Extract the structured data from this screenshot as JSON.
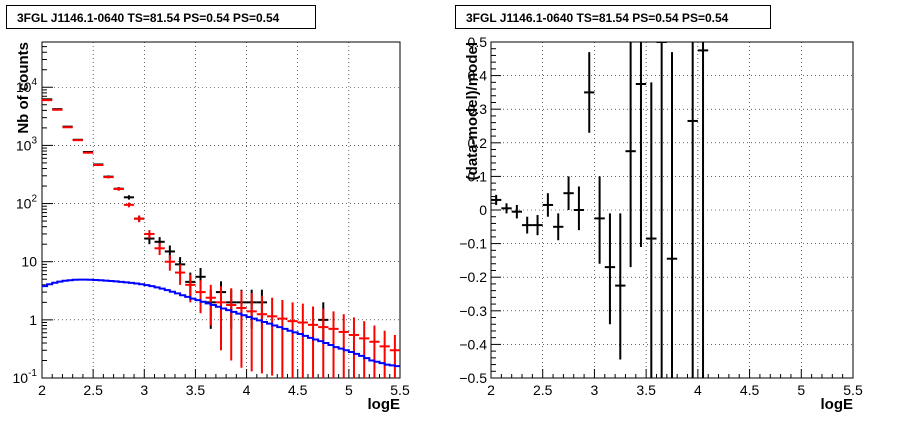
{
  "chart_data": [
    {
      "type": "scatter",
      "title": "3FGL J1146.1-0640 TS=81.54 PS=0.54 PS=0.54",
      "xlabel": "logE",
      "ylabel": "Nb of counts",
      "xlim": [
        2,
        5.5
      ],
      "ylim": [
        0.1,
        60000
      ],
      "yscale": "log",
      "grid": true,
      "x_ticks": [
        "2",
        "2.5",
        "3",
        "3.5",
        "4",
        "4.5",
        "5",
        "5.5"
      ],
      "y_ticks": [
        "10^{-1}",
        "1",
        "10",
        "10^{2}",
        "10^{3}",
        "10^{4}"
      ],
      "series": [
        {
          "color": "#000000",
          "marker": "errorbar",
          "points": [
            {
              "x": 2.05,
              "y": 6200,
              "lo": 6100,
              "hi": 6300
            },
            {
              "x": 2.15,
              "y": 4200,
              "lo": 4130,
              "hi": 4270
            },
            {
              "x": 2.25,
              "y": 2100,
              "lo": 2050,
              "hi": 2150
            },
            {
              "x": 2.35,
              "y": 1250,
              "lo": 1210,
              "hi": 1290
            },
            {
              "x": 2.45,
              "y": 770,
              "lo": 740,
              "hi": 800
            },
            {
              "x": 2.55,
              "y": 470,
              "lo": 450,
              "hi": 490
            },
            {
              "x": 2.65,
              "y": 290,
              "lo": 275,
              "hi": 305
            },
            {
              "x": 2.75,
              "y": 180,
              "lo": 168,
              "hi": 192
            },
            {
              "x": 2.85,
              "y": 128,
              "lo": 117,
              "hi": 139
            },
            {
              "x": 2.95,
              "y": 55,
              "lo": 48,
              "hi": 62
            },
            {
              "x": 3.05,
              "y": 25,
              "lo": 20,
              "hi": 30
            },
            {
              "x": 3.15,
              "y": 22,
              "lo": 17.5,
              "hi": 26.5
            },
            {
              "x": 3.25,
              "y": 15,
              "lo": 11,
              "hi": 19
            },
            {
              "x": 3.35,
              "y": 9,
              "lo": 6,
              "hi": 12
            },
            {
              "x": 3.45,
              "y": 4.5,
              "lo": 2.5,
              "hi": 6.5
            },
            {
              "x": 3.55,
              "y": 5.5,
              "lo": 3.2,
              "hi": 7.8
            },
            {
              "x": 3.65,
              "y": 2,
              "lo": 0.7,
              "hi": 3.3
            },
            {
              "x": 3.75,
              "y": 3,
              "lo": 1.4,
              "hi": 4.6
            },
            {
              "x": 3.85,
              "y": 2,
              "lo": 0.7,
              "hi": 3.3
            },
            {
              "x": 3.95,
              "y": 2,
              "lo": 0.7,
              "hi": 3.3
            },
            {
              "x": 4.05,
              "y": 2,
              "lo": 0.7,
              "hi": 3.3
            },
            {
              "x": 4.15,
              "y": 2,
              "lo": 0.7,
              "hi": 3.3
            },
            {
              "x": 4.75,
              "y": 1,
              "lo": 0.45,
              "hi": 2.0
            }
          ]
        },
        {
          "color": "#ff0000",
          "marker": "errorbar",
          "points": [
            {
              "x": 2.05,
              "y": 6000,
              "lo": 5900,
              "hi": 6100
            },
            {
              "x": 2.15,
              "y": 4100,
              "lo": 4030,
              "hi": 4170
            },
            {
              "x": 2.25,
              "y": 2050,
              "lo": 2000,
              "hi": 2100
            },
            {
              "x": 2.35,
              "y": 1230,
              "lo": 1190,
              "hi": 1270
            },
            {
              "x": 2.45,
              "y": 750,
              "lo": 720,
              "hi": 780
            },
            {
              "x": 2.55,
              "y": 460,
              "lo": 440,
              "hi": 480
            },
            {
              "x": 2.65,
              "y": 285,
              "lo": 270,
              "hi": 300
            },
            {
              "x": 2.75,
              "y": 178,
              "lo": 166,
              "hi": 190
            },
            {
              "x": 2.85,
              "y": 95,
              "lo": 86,
              "hi": 104
            },
            {
              "x": 2.95,
              "y": 55,
              "lo": 48,
              "hi": 62
            },
            {
              "x": 3.05,
              "y": 30,
              "lo": 25,
              "hi": 35
            },
            {
              "x": 3.15,
              "y": 17,
              "lo": 13,
              "hi": 21
            },
            {
              "x": 3.25,
              "y": 10,
              "lo": 7,
              "hi": 13
            },
            {
              "x": 3.35,
              "y": 6.5,
              "lo": 4,
              "hi": 9
            },
            {
              "x": 3.45,
              "y": 4,
              "lo": 2,
              "hi": 6
            },
            {
              "x": 3.55,
              "y": 3,
              "lo": 1.3,
              "hi": 4.8
            },
            {
              "x": 3.65,
              "y": 2.4,
              "lo": 0.8,
              "hi": 4.0
            },
            {
              "x": 3.75,
              "y": 2,
              "lo": 0.3,
              "hi": 3.8
            },
            {
              "x": 3.85,
              "y": 1.8,
              "lo": 0.2,
              "hi": 3.5
            },
            {
              "x": 3.95,
              "y": 1.6,
              "lo": 0.15,
              "hi": 3.2
            },
            {
              "x": 4.05,
              "y": 1.4,
              "lo": 0.13,
              "hi": 2.9
            },
            {
              "x": 4.15,
              "y": 1.25,
              "lo": 0.12,
              "hi": 2.6
            },
            {
              "x": 4.25,
              "y": 1.15,
              "lo": 0.11,
              "hi": 2.4
            },
            {
              "x": 4.35,
              "y": 1.05,
              "lo": 0.1,
              "hi": 2.2
            },
            {
              "x": 4.45,
              "y": 0.95,
              "lo": 0.1,
              "hi": 2.0
            },
            {
              "x": 4.55,
              "y": 0.9,
              "lo": 0.1,
              "hi": 1.9
            },
            {
              "x": 4.65,
              "y": 0.82,
              "lo": 0.1,
              "hi": 1.7
            },
            {
              "x": 4.75,
              "y": 0.75,
              "lo": 0.1,
              "hi": 1.55
            },
            {
              "x": 4.85,
              "y": 0.7,
              "lo": 0.1,
              "hi": 1.4
            },
            {
              "x": 4.95,
              "y": 0.62,
              "lo": 0.1,
              "hi": 1.25
            },
            {
              "x": 5.05,
              "y": 0.55,
              "lo": 0.1,
              "hi": 1.1
            },
            {
              "x": 5.15,
              "y": 0.48,
              "lo": 0.1,
              "hi": 0.95
            },
            {
              "x": 5.25,
              "y": 0.42,
              "lo": 0.1,
              "hi": 0.8
            },
            {
              "x": 5.35,
              "y": 0.35,
              "lo": 0.1,
              "hi": 0.65
            },
            {
              "x": 5.45,
              "y": 0.3,
              "lo": 0.1,
              "hi": 0.55
            }
          ]
        },
        {
          "color": "#0000ff",
          "type": "step",
          "bin_edges": [
            2.0,
            2.05,
            2.1,
            2.15,
            2.2,
            2.25,
            2.3,
            2.35,
            2.4,
            2.45,
            2.5,
            2.55,
            2.6,
            2.65,
            2.7,
            2.75,
            2.8,
            2.85,
            2.9,
            2.95,
            3.0,
            3.05,
            3.1,
            3.15,
            3.2,
            3.25,
            3.3,
            3.35,
            3.4,
            3.45,
            3.5,
            3.55,
            3.6,
            3.65,
            3.7,
            3.75,
            3.8,
            3.85,
            3.9,
            3.95,
            4.0,
            4.05,
            4.1,
            4.15,
            4.2,
            4.25,
            4.3,
            4.35,
            4.4,
            4.45,
            4.5,
            4.55,
            4.6,
            4.65,
            4.7,
            4.75,
            4.8,
            4.85,
            4.9,
            4.95,
            5.0,
            5.05,
            5.1,
            5.15,
            5.2,
            5.25,
            5.3,
            5.35,
            5.4,
            5.45,
            5.5
          ],
          "values": [
            3.8,
            4.1,
            4.35,
            4.55,
            4.7,
            4.8,
            4.9,
            4.92,
            4.92,
            4.9,
            4.85,
            4.8,
            4.72,
            4.65,
            4.58,
            4.5,
            4.42,
            4.32,
            4.22,
            4.1,
            3.95,
            3.8,
            3.62,
            3.45,
            3.25,
            3.05,
            2.85,
            2.65,
            2.48,
            2.32,
            2.18,
            2.05,
            1.92,
            1.8,
            1.68,
            1.57,
            1.47,
            1.37,
            1.28,
            1.2,
            1.12,
            1.05,
            0.98,
            0.92,
            0.86,
            0.8,
            0.75,
            0.7,
            0.65,
            0.61,
            0.57,
            0.53,
            0.49,
            0.46,
            0.43,
            0.4,
            0.37,
            0.34,
            0.32,
            0.3,
            0.28,
            0.26,
            0.24,
            0.22,
            0.2,
            0.19,
            0.18,
            0.17,
            0.165,
            0.16
          ]
        }
      ]
    },
    {
      "type": "scatter",
      "title": "3FGL J1146.1-0640 TS=81.54 PS=0.54 PS=0.54",
      "xlabel": "logE",
      "ylabel": "(data-model)/model",
      "xlim": [
        2,
        5.5
      ],
      "ylim": [
        -0.5,
        0.5
      ],
      "grid": true,
      "x_ticks": [
        "2",
        "2.5",
        "3",
        "3.5",
        "4",
        "4.5",
        "5",
        "5.5"
      ],
      "y_ticks": [
        "−0.5",
        "−0.4",
        "−0.3",
        "−0.2",
        "−0.1",
        "0",
        "0.1",
        "0.2",
        "0.3",
        "0.4",
        "0.5"
      ],
      "series": [
        {
          "color": "#000000",
          "marker": "errorbar",
          "points": [
            {
              "x": 2.05,
              "y": 0.03,
              "lo": 0.015,
              "hi": 0.045
            },
            {
              "x": 2.15,
              "y": 0.005,
              "lo": -0.01,
              "hi": 0.02
            },
            {
              "x": 2.25,
              "y": -0.005,
              "lo": -0.025,
              "hi": 0.015
            },
            {
              "x": 2.35,
              "y": -0.045,
              "lo": -0.07,
              "hi": -0.02
            },
            {
              "x": 2.45,
              "y": -0.045,
              "lo": -0.075,
              "hi": -0.015
            },
            {
              "x": 2.55,
              "y": 0.015,
              "lo": -0.02,
              "hi": 0.05
            },
            {
              "x": 2.65,
              "y": -0.05,
              "lo": -0.09,
              "hi": -0.01
            },
            {
              "x": 2.75,
              "y": 0.05,
              "lo": 0.0,
              "hi": 0.1
            },
            {
              "x": 2.85,
              "y": 0.0,
              "lo": -0.06,
              "hi": 0.07
            },
            {
              "x": 2.95,
              "y": 0.35,
              "lo": 0.23,
              "hi": 0.47
            },
            {
              "x": 3.05,
              "y": -0.025,
              "lo": -0.16,
              "hi": 0.1
            },
            {
              "x": 3.15,
              "y": -0.17,
              "lo": -0.34,
              "hi": -0.01
            },
            {
              "x": 3.25,
              "y": -0.225,
              "lo": -0.445,
              "hi": -0.01
            },
            {
              "x": 3.35,
              "y": 0.175,
              "lo": -0.17,
              "hi": 0.5
            },
            {
              "x": 3.45,
              "y": 0.375,
              "lo": -0.11,
              "hi": 0.5
            },
            {
              "x": 3.55,
              "y": -0.085,
              "lo": -0.5,
              "hi": 0.38
            },
            {
              "x": 3.65,
              "y": 0.5,
              "lo": -0.5,
              "hi": 0.5
            },
            {
              "x": 3.75,
              "y": -0.145,
              "lo": -0.5,
              "hi": 0.47
            },
            {
              "x": 3.95,
              "y": 0.265,
              "lo": -0.5,
              "hi": 0.5
            },
            {
              "x": 4.05,
              "y": 0.475,
              "lo": -0.5,
              "hi": 0.5
            }
          ]
        }
      ]
    }
  ]
}
